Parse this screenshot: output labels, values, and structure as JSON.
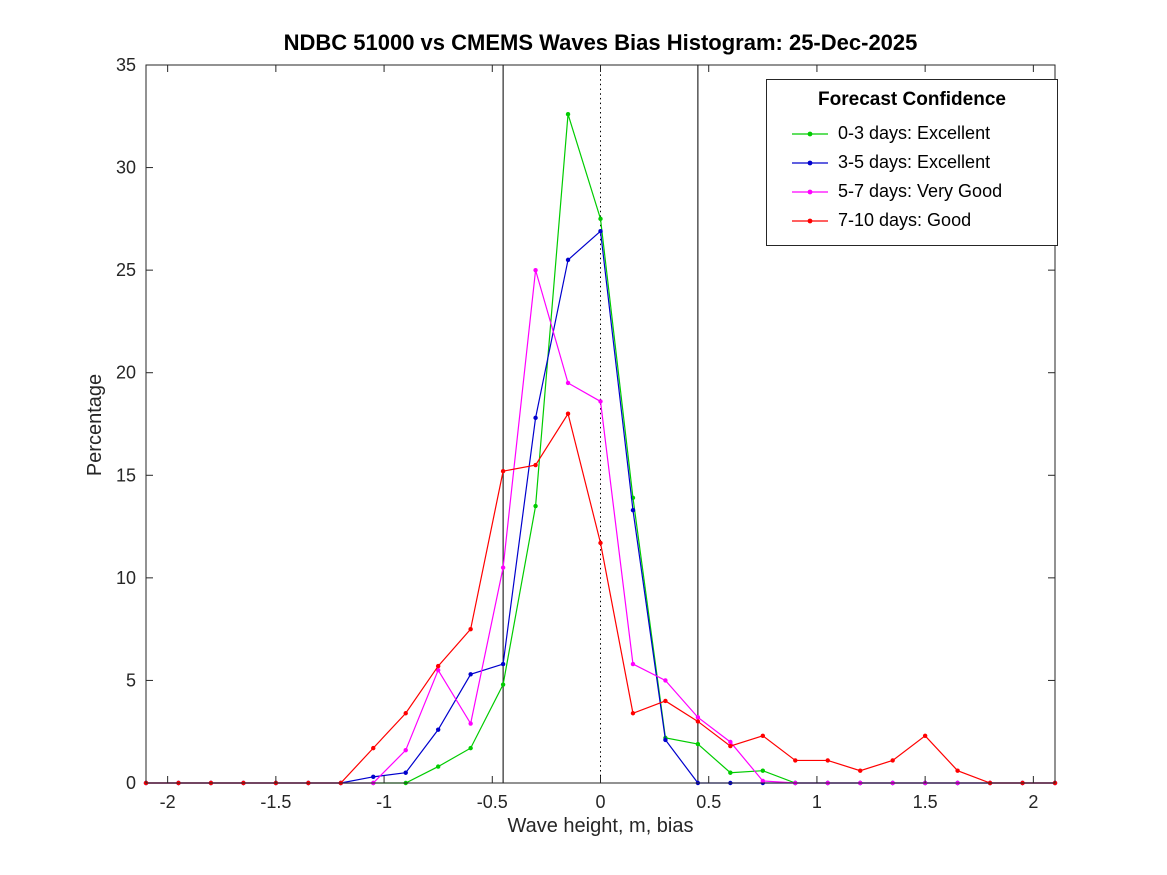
{
  "chart_data": {
    "type": "line",
    "title": "NDBC 51000 vs CMEMS Waves Bias Histogram: 25-Dec-2025",
    "xlabel": "Wave height, m, bias",
    "ylabel": "Percentage",
    "legend_title": "Forecast Confidence",
    "legend_position": "top-right",
    "grid": false,
    "xlim": [
      -2.1,
      2.1
    ],
    "ylim": [
      0,
      35
    ],
    "x_ticks": [
      -2,
      -1.5,
      -1,
      -0.5,
      0,
      0.5,
      1,
      1.5,
      2
    ],
    "x_tick_labels": [
      "-2",
      "-1.5",
      "-1",
      "-0.5",
      "0",
      "0.5",
      "1",
      "1.5",
      "2"
    ],
    "y_ticks": [
      0,
      5,
      10,
      15,
      20,
      25,
      30,
      35
    ],
    "y_tick_labels": [
      "0",
      "5",
      "10",
      "15",
      "20",
      "25",
      "30",
      "35"
    ],
    "reference_lines": {
      "solid_vertical": [
        -0.45,
        0.45
      ],
      "dotted_vertical": [
        0
      ]
    },
    "x": [
      -2.1,
      -1.95,
      -1.8,
      -1.65,
      -1.5,
      -1.35,
      -1.2,
      -1.05,
      -0.9,
      -0.75,
      -0.6,
      -0.45,
      -0.3,
      -0.15,
      0,
      0.15,
      0.3,
      0.45,
      0.6,
      0.75,
      0.9,
      1.05,
      1.2,
      1.35,
      1.5,
      1.65,
      1.8,
      1.95,
      2.1
    ],
    "series": [
      {
        "name": "0-3 days: Excellent",
        "color": "#00cc00",
        "values": [
          0,
          0,
          0,
          0,
          0,
          0,
          0,
          0,
          0,
          0.8,
          1.7,
          4.8,
          13.5,
          32.6,
          27.5,
          13.9,
          2.2,
          1.9,
          0.5,
          0.6,
          0,
          0,
          0,
          0,
          0,
          0,
          0,
          0,
          0
        ]
      },
      {
        "name": "3-5 days: Excellent",
        "color": "#0000cd",
        "values": [
          0,
          0,
          0,
          0,
          0,
          0,
          0,
          0.3,
          0.5,
          2.6,
          5.3,
          5.8,
          17.8,
          25.5,
          26.9,
          13.3,
          2.1,
          0,
          0,
          0,
          0,
          0,
          0,
          0,
          0,
          0,
          0,
          0,
          0
        ]
      },
      {
        "name": "5-7 days: Very Good",
        "color": "#ff00ff",
        "values": [
          0,
          0,
          0,
          0,
          0,
          0,
          0,
          0,
          1.6,
          5.5,
          2.9,
          10.5,
          25.0,
          19.5,
          18.6,
          5.8,
          5.0,
          3.2,
          2.0,
          0.1,
          0,
          0,
          0,
          0,
          0,
          0,
          0,
          0,
          0
        ]
      },
      {
        "name": "7-10 days: Good",
        "color": "#ff0000",
        "values": [
          0,
          0,
          0,
          0,
          0,
          0,
          0,
          1.7,
          3.4,
          5.7,
          7.5,
          15.2,
          15.5,
          18.0,
          11.7,
          3.4,
          4.0,
          3.0,
          1.8,
          2.3,
          1.1,
          1.1,
          0.6,
          1.1,
          2.3,
          0.6,
          0,
          0,
          0
        ]
      }
    ]
  }
}
